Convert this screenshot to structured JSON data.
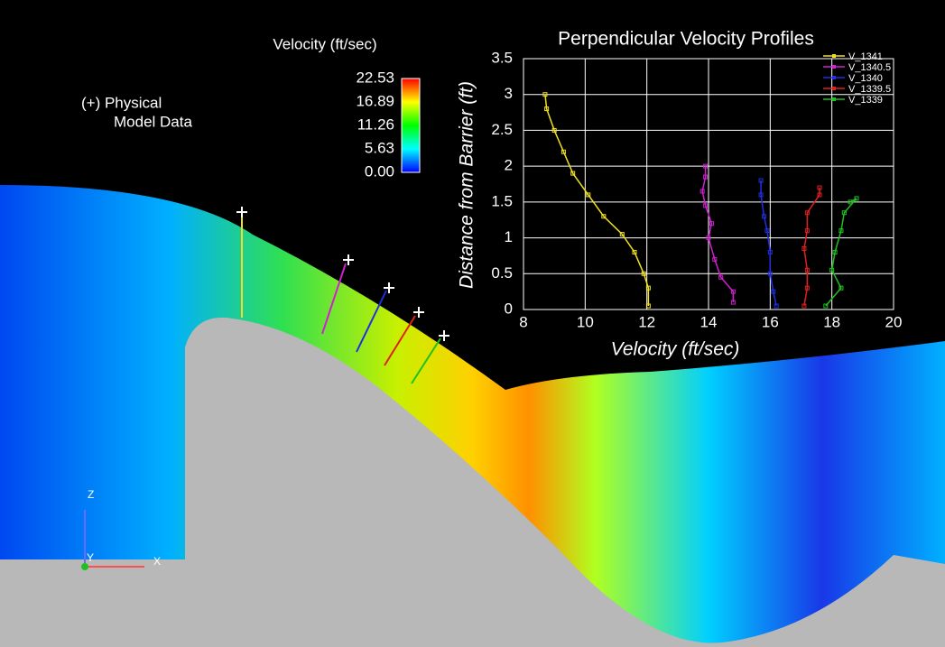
{
  "chart_data": {
    "type": "line",
    "title": "Perpendicular Velocity Profiles",
    "xlabel": "Velocity (ft/sec)",
    "ylabel": "Distance from Barrier (ft)",
    "xlim": [
      8,
      20
    ],
    "xticks": [
      8,
      10,
      12,
      14,
      16,
      18,
      20
    ],
    "ylim": [
      0,
      3.5
    ],
    "yticks": [
      0,
      0.5,
      1,
      1.5,
      2,
      2.5,
      3,
      3.5
    ],
    "grid": true,
    "legend": "upper right",
    "series": [
      {
        "name": "V_1341",
        "color": "#f0e020",
        "x": [
          12.05,
          12.05,
          11.9,
          11.6,
          11.2,
          10.6,
          10.1,
          9.6,
          9.3,
          9.0,
          8.75,
          8.7
        ],
        "values": [
          0.05,
          0.3,
          0.5,
          0.8,
          1.05,
          1.3,
          1.6,
          1.9,
          2.2,
          2.5,
          2.8,
          3.0
        ]
      },
      {
        "name": "V_1340.5",
        "color": "#d020d0",
        "x": [
          14.8,
          14.8,
          14.4,
          14.2,
          14.0,
          14.1,
          13.9,
          13.8,
          13.9,
          13.9
        ],
        "values": [
          0.1,
          0.25,
          0.45,
          0.7,
          1.0,
          1.2,
          1.45,
          1.65,
          1.85,
          2.0
        ]
      },
      {
        "name": "V_1340",
        "color": "#2030e0",
        "x": [
          16.2,
          16.1,
          16.0,
          16.0,
          15.9,
          15.8,
          15.7,
          15.7
        ],
        "values": [
          0.05,
          0.25,
          0.5,
          0.8,
          1.1,
          1.3,
          1.6,
          1.8
        ]
      },
      {
        "name": "V_1339.5",
        "color": "#e02020",
        "x": [
          17.1,
          17.2,
          17.2,
          17.1,
          17.2,
          17.2,
          17.6,
          17.6
        ],
        "values": [
          0.05,
          0.3,
          0.55,
          0.85,
          1.1,
          1.35,
          1.6,
          1.7
        ]
      },
      {
        "name": "V_1339",
        "color": "#20c020",
        "x": [
          17.8,
          18.3,
          18.0,
          18.1,
          18.3,
          18.4,
          18.8,
          18.6
        ],
        "values": [
          0.05,
          0.3,
          0.55,
          0.8,
          1.1,
          1.35,
          1.55,
          1.5
        ]
      }
    ]
  },
  "colorbar": {
    "title": "Velocity (ft/sec)",
    "lim": [
      0,
      22.53
    ],
    "ticks": [
      22.53,
      16.89,
      11.26,
      5.63,
      {
        "value": 0,
        "label": "0.00"
      }
    ]
  },
  "annotation": [
    "(+) Physical",
    "Model Data"
  ],
  "triad": {
    "z": "Z",
    "x": "X",
    "y": "Y"
  }
}
